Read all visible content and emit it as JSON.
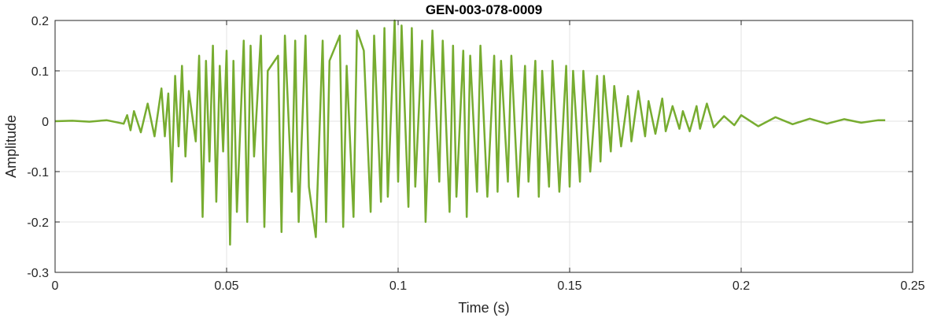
{
  "chart_data": {
    "type": "line",
    "title": "GEN-003-078-0009",
    "xlabel": "Time (s)",
    "ylabel": "Amplitude",
    "xlim": [
      0,
      0.25
    ],
    "ylim": [
      -0.3,
      0.2
    ],
    "x_ticks": [
      0,
      0.05,
      0.1,
      0.15,
      0.2,
      0.25
    ],
    "x_tick_labels": [
      "0",
      "0.05",
      "0.1",
      "0.15",
      "0.2",
      "0.25"
    ],
    "y_ticks": [
      -0.3,
      -0.2,
      -0.1,
      0,
      0.1,
      0.2
    ],
    "y_tick_labels": [
      "-0.3",
      "-0.2",
      "-0.1",
      "0",
      "0.1",
      "0.2"
    ],
    "grid": true,
    "line_color": "#77AC30",
    "series": [
      {
        "x": [
          0,
          0.005,
          0.01,
          0.015,
          0.02,
          0.021,
          0.022,
          0.023,
          0.025,
          0.027,
          0.029,
          0.031,
          0.032,
          0.033,
          0.034,
          0.035,
          0.036,
          0.037,
          0.038,
          0.039,
          0.041,
          0.042,
          0.043,
          0.044,
          0.045,
          0.046,
          0.047,
          0.048,
          0.049,
          0.05,
          0.051,
          0.052,
          0.053,
          0.055,
          0.056,
          0.057,
          0.058,
          0.06,
          0.061,
          0.062,
          0.065,
          0.066,
          0.067,
          0.069,
          0.07,
          0.071,
          0.073,
          0.074,
          0.076,
          0.078,
          0.079,
          0.08,
          0.083,
          0.084,
          0.085,
          0.087,
          0.088,
          0.09,
          0.092,
          0.093,
          0.095,
          0.096,
          0.097,
          0.099,
          0.1,
          0.101,
          0.103,
          0.104,
          0.105,
          0.107,
          0.108,
          0.11,
          0.112,
          0.113,
          0.115,
          0.116,
          0.117,
          0.119,
          0.12,
          0.121,
          0.123,
          0.124,
          0.126,
          0.128,
          0.129,
          0.13,
          0.132,
          0.133,
          0.135,
          0.137,
          0.138,
          0.14,
          0.141,
          0.142,
          0.144,
          0.145,
          0.147,
          0.149,
          0.15,
          0.151,
          0.153,
          0.154,
          0.156,
          0.158,
          0.159,
          0.16,
          0.162,
          0.163,
          0.165,
          0.167,
          0.168,
          0.17,
          0.172,
          0.173,
          0.175,
          0.177,
          0.178,
          0.18,
          0.182,
          0.183,
          0.185,
          0.187,
          0.188,
          0.19,
          0.192,
          0.195,
          0.198,
          0.2,
          0.205,
          0.21,
          0.215,
          0.22,
          0.225,
          0.23,
          0.235,
          0.24,
          0.242
        ],
        "y": [
          0,
          0.001,
          -0.001,
          0.002,
          -0.005,
          0.012,
          -0.018,
          0.02,
          -0.022,
          0.035,
          -0.03,
          0.065,
          -0.03,
          0.055,
          -0.12,
          0.09,
          -0.05,
          0.11,
          -0.07,
          0.06,
          -0.04,
          0.13,
          -0.19,
          0.12,
          -0.08,
          0.15,
          -0.16,
          0.11,
          -0.06,
          0.14,
          -0.245,
          0.12,
          -0.18,
          0.16,
          -0.2,
          0.15,
          -0.07,
          0.17,
          -0.21,
          0.1,
          0.13,
          -0.22,
          0.17,
          -0.14,
          0.16,
          -0.2,
          0.17,
          -0.13,
          -0.23,
          0.16,
          -0.2,
          0.12,
          0.17,
          -0.21,
          0.11,
          -0.19,
          0.18,
          0.14,
          -0.18,
          0.17,
          -0.16,
          0.185,
          -0.15,
          0.2,
          -0.12,
          0.19,
          -0.17,
          0.185,
          -0.13,
          0.16,
          -0.2,
          0.18,
          -0.12,
          0.16,
          -0.18,
          0.15,
          -0.15,
          0.14,
          -0.19,
          0.13,
          -0.14,
          0.15,
          -0.15,
          0.13,
          -0.14,
          0.12,
          -0.12,
          0.13,
          -0.15,
          0.11,
          -0.12,
          0.12,
          -0.15,
          0.1,
          -0.13,
          0.12,
          -0.14,
          0.11,
          -0.13,
          0.1,
          -0.12,
          0.1,
          -0.1,
          0.09,
          -0.08,
          0.09,
          -0.06,
          0.07,
          -0.05,
          0.05,
          -0.04,
          0.06,
          -0.03,
          0.04,
          -0.025,
          0.045,
          -0.02,
          0.03,
          -0.015,
          0.02,
          -0.02,
          0.03,
          -0.015,
          0.035,
          -0.012,
          0.01,
          -0.008,
          0.012,
          -0.01,
          0.008,
          -0.006,
          0.005,
          -0.005,
          0.004,
          -0.003,
          0.002,
          0.002
        ]
      }
    ]
  }
}
